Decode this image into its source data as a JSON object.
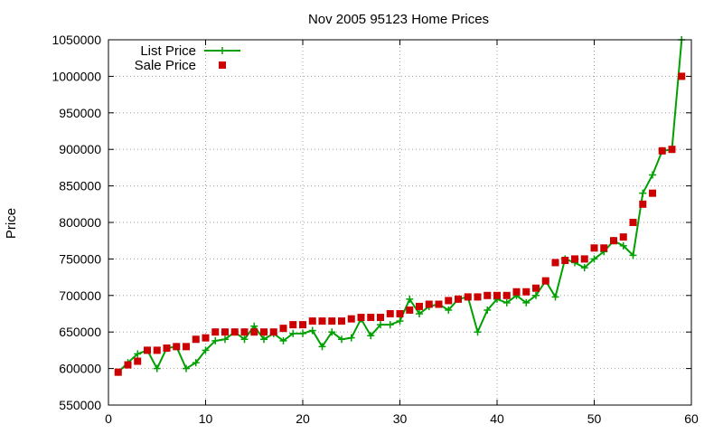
{
  "chart_data": {
    "type": "line",
    "title": "Nov 2005 95123 Home Prices",
    "xlabel": "",
    "ylabel": "Price",
    "xlim": [
      0,
      60
    ],
    "ylim": [
      550000,
      1050000
    ],
    "xticks": [
      0,
      10,
      20,
      30,
      40,
      50,
      60
    ],
    "yticks": [
      550000,
      600000,
      650000,
      700000,
      750000,
      800000,
      850000,
      900000,
      950000,
      1000000,
      1050000
    ],
    "grid": true,
    "legend_position": "top-left",
    "series": [
      {
        "name": "List Price",
        "style": "line-with-plus-markers",
        "color": "#00a000",
        "points": [
          [
            1,
            595000
          ],
          [
            2,
            608000
          ],
          [
            3,
            620000
          ],
          [
            4,
            625000
          ],
          [
            5,
            600000
          ],
          [
            6,
            628000
          ],
          [
            7,
            630000
          ],
          [
            8,
            600000
          ],
          [
            9,
            608000
          ],
          [
            10,
            625000
          ],
          [
            11,
            638000
          ],
          [
            12,
            640000
          ],
          [
            13,
            650000
          ],
          [
            14,
            640000
          ],
          [
            15,
            658000
          ],
          [
            16,
            640000
          ],
          [
            17,
            648000
          ],
          [
            18,
            638000
          ],
          [
            19,
            648000
          ],
          [
            20,
            648000
          ],
          [
            21,
            652000
          ],
          [
            22,
            630000
          ],
          [
            23,
            650000
          ],
          [
            24,
            640000
          ],
          [
            25,
            642000
          ],
          [
            26,
            668000
          ],
          [
            27,
            645000
          ],
          [
            28,
            660000
          ],
          [
            29,
            660000
          ],
          [
            30,
            665000
          ],
          [
            31,
            695000
          ],
          [
            32,
            675000
          ],
          [
            33,
            685000
          ],
          [
            34,
            688000
          ],
          [
            35,
            680000
          ],
          [
            36,
            695000
          ],
          [
            37,
            698000
          ],
          [
            38,
            650000
          ],
          [
            39,
            680000
          ],
          [
            40,
            695000
          ],
          [
            41,
            690000
          ],
          [
            42,
            700000
          ],
          [
            43,
            690000
          ],
          [
            44,
            700000
          ],
          [
            45,
            720000
          ],
          [
            46,
            698000
          ],
          [
            47,
            750000
          ],
          [
            48,
            745000
          ],
          [
            49,
            738000
          ],
          [
            50,
            750000
          ],
          [
            51,
            760000
          ],
          [
            52,
            775000
          ],
          [
            53,
            768000
          ],
          [
            54,
            755000
          ],
          [
            55,
            840000
          ],
          [
            56,
            865000
          ],
          [
            57,
            898000
          ],
          [
            58,
            900000
          ],
          [
            59,
            1050000
          ]
        ]
      },
      {
        "name": "Sale Price",
        "style": "square-markers",
        "color": "#cc0000",
        "points": [
          [
            1,
            595000
          ],
          [
            2,
            605000
          ],
          [
            3,
            610000
          ],
          [
            4,
            625000
          ],
          [
            5,
            625000
          ],
          [
            6,
            628000
          ],
          [
            7,
            630000
          ],
          [
            8,
            630000
          ],
          [
            9,
            640000
          ],
          [
            10,
            642000
          ],
          [
            11,
            650000
          ],
          [
            12,
            650000
          ],
          [
            13,
            650000
          ],
          [
            14,
            650000
          ],
          [
            15,
            650000
          ],
          [
            16,
            650000
          ],
          [
            17,
            650000
          ],
          [
            18,
            655000
          ],
          [
            19,
            660000
          ],
          [
            20,
            660000
          ],
          [
            21,
            665000
          ],
          [
            22,
            665000
          ],
          [
            23,
            665000
          ],
          [
            24,
            665000
          ],
          [
            25,
            668000
          ],
          [
            26,
            670000
          ],
          [
            27,
            670000
          ],
          [
            28,
            670000
          ],
          [
            29,
            675000
          ],
          [
            30,
            675000
          ],
          [
            31,
            680000
          ],
          [
            32,
            685000
          ],
          [
            33,
            688000
          ],
          [
            34,
            688000
          ],
          [
            35,
            693000
          ],
          [
            36,
            695000
          ],
          [
            37,
            698000
          ],
          [
            38,
            698000
          ],
          [
            39,
            700000
          ],
          [
            40,
            700000
          ],
          [
            41,
            700000
          ],
          [
            42,
            705000
          ],
          [
            43,
            705000
          ],
          [
            44,
            710000
          ],
          [
            45,
            720000
          ],
          [
            46,
            745000
          ],
          [
            47,
            748000
          ],
          [
            48,
            750000
          ],
          [
            49,
            750000
          ],
          [
            50,
            765000
          ],
          [
            51,
            765000
          ],
          [
            52,
            775000
          ],
          [
            53,
            780000
          ],
          [
            54,
            800000
          ],
          [
            55,
            825000
          ],
          [
            56,
            840000
          ],
          [
            57,
            898000
          ],
          [
            58,
            900000
          ],
          [
            59,
            1000000
          ]
        ]
      }
    ]
  }
}
